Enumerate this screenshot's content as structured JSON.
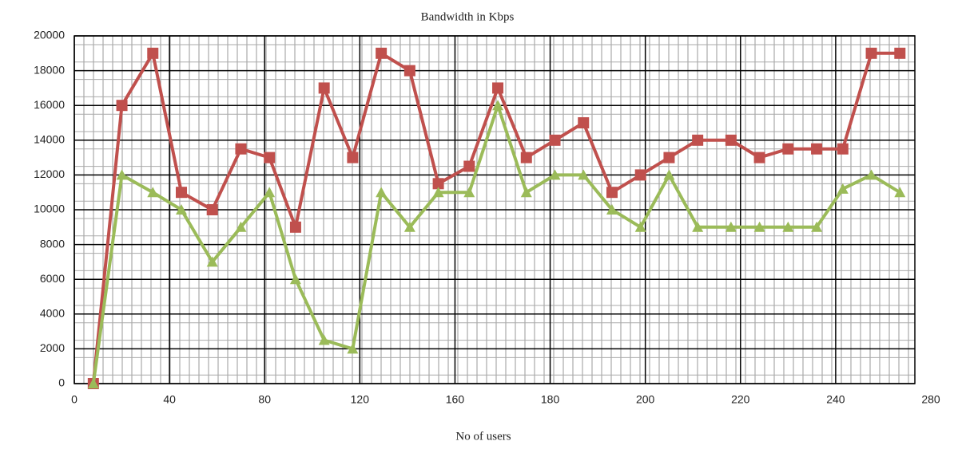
{
  "chart_data": {
    "type": "line",
    "title": "Bandwidth in Kbps",
    "xlabel": "No of users",
    "x": [
      8,
      20,
      33,
      45,
      58,
      70,
      82,
      93,
      105,
      117,
      129,
      141,
      153,
      163,
      169,
      175,
      181,
      187,
      193,
      199,
      205,
      211,
      218,
      224,
      230,
      236,
      243,
      255,
      267
    ],
    "series": [
      {
        "color": "#c0504d",
        "marker": "square",
        "values": [
          0,
          16000,
          19000,
          11000,
          10000,
          13500,
          13000,
          9000,
          17000,
          13000,
          19000,
          18000,
          11500,
          12500,
          17000,
          13000,
          14000,
          15000,
          11000,
          12000,
          13000,
          14000,
          14000,
          13000,
          13500,
          13500,
          13500,
          19000,
          19000
        ]
      },
      {
        "color": "#9bbb59",
        "marker": "triangle",
        "values": [
          0,
          12000,
          11000,
          10000,
          7000,
          9000,
          11000,
          6000,
          2500,
          2000,
          11000,
          9000,
          11000,
          11000,
          16000,
          11000,
          12000,
          12000,
          10000,
          9000,
          12000,
          9000,
          9000,
          9000,
          9000,
          9000,
          11200,
          12000,
          11000
        ]
      }
    ],
    "xticks": [
      0,
      40,
      80,
      120,
      160,
      180,
      200,
      220,
      240,
      280
    ],
    "ylim": [
      0,
      20000
    ],
    "yticks": [
      0,
      2000,
      4000,
      6000,
      8000,
      10000,
      12000,
      14000,
      16000,
      18000,
      20000
    ],
    "grid": true
  }
}
